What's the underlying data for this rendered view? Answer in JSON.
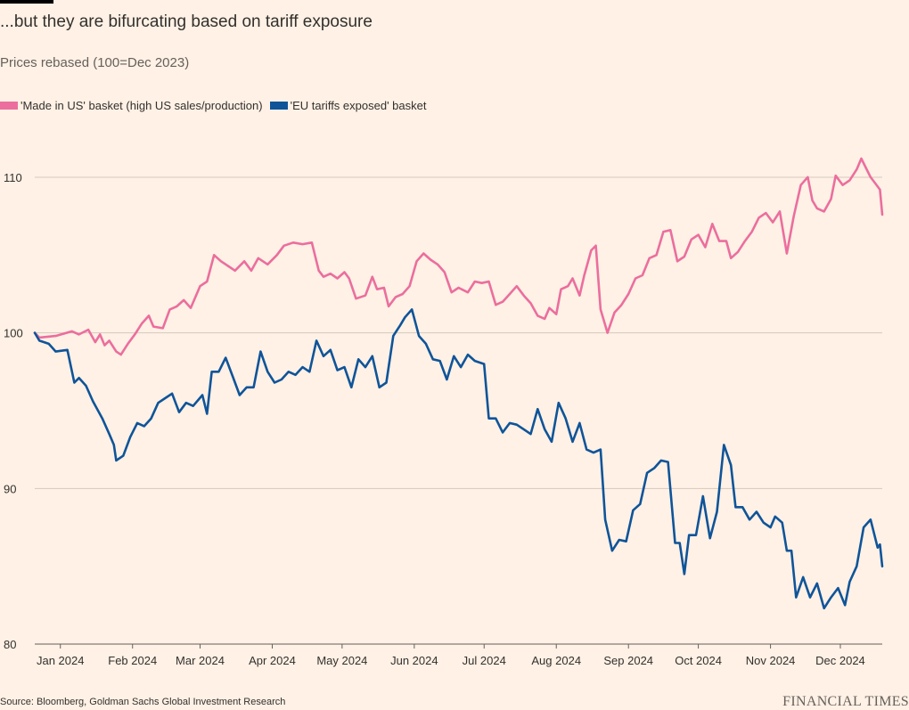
{
  "header": {
    "title": "...but they are bifurcating based on tariff exposure",
    "subtitle": "Prices rebased (100=Dec 2023)"
  },
  "footer": {
    "source": "Source: Bloomberg, Goldman Sachs Global Investment Research",
    "brand": "FINANCIAL TIMES"
  },
  "chart_data": {
    "type": "line",
    "title": "...but they are bifurcating based on tariff exposure",
    "subtitle": "Prices rebased (100=Dec 2023)",
    "xlabel": "",
    "ylabel": "",
    "x_ticks": [
      "Jan 2024",
      "Feb 2024",
      "Mar 2024",
      "Apr 2024",
      "May 2024",
      "Jun 2024",
      "Jul 2024",
      "Aug 2024",
      "Sep 2024",
      "Oct 2024",
      "Nov 2024",
      "Dec 2024"
    ],
    "x_range": [
      "2023-12-21",
      "2024-12-19"
    ],
    "y_ticks": [
      80,
      90,
      100,
      110
    ],
    "ylim": [
      80,
      112
    ],
    "grid": "horizontal",
    "legend_position": "top-left",
    "series": [
      {
        "name": "'Made in US' basket (high US sales/production)",
        "color": "#eb6e9e",
        "points": [
          [
            "2023-12-21",
            100.0
          ],
          [
            "2023-12-23",
            99.7
          ],
          [
            "2023-12-30",
            99.8
          ],
          [
            "2024-01-06",
            100.1
          ],
          [
            "2024-01-09",
            99.9
          ],
          [
            "2024-01-13",
            100.2
          ],
          [
            "2024-01-16",
            99.4
          ],
          [
            "2024-01-18",
            99.9
          ],
          [
            "2024-01-20",
            99.2
          ],
          [
            "2024-01-22",
            99.5
          ],
          [
            "2024-01-25",
            98.8
          ],
          [
            "2024-01-27",
            98.6
          ],
          [
            "2024-01-30",
            99.3
          ],
          [
            "2024-02-02",
            99.9
          ],
          [
            "2024-02-05",
            100.6
          ],
          [
            "2024-02-08",
            101.1
          ],
          [
            "2024-02-10",
            100.4
          ],
          [
            "2024-02-14",
            100.3
          ],
          [
            "2024-02-17",
            101.5
          ],
          [
            "2024-02-20",
            101.7
          ],
          [
            "2024-02-23",
            102.1
          ],
          [
            "2024-02-26",
            101.6
          ],
          [
            "2024-03-01",
            103.0
          ],
          [
            "2024-03-04",
            103.3
          ],
          [
            "2024-03-07",
            105.0
          ],
          [
            "2024-03-10",
            104.6
          ],
          [
            "2024-03-13",
            104.3
          ],
          [
            "2024-03-16",
            104.0
          ],
          [
            "2024-03-20",
            104.6
          ],
          [
            "2024-03-23",
            104.0
          ],
          [
            "2024-03-26",
            104.8
          ],
          [
            "2024-03-30",
            104.4
          ],
          [
            "2024-04-03",
            105.0
          ],
          [
            "2024-04-06",
            105.6
          ],
          [
            "2024-04-10",
            105.8
          ],
          [
            "2024-04-14",
            105.7
          ],
          [
            "2024-04-18",
            105.8
          ],
          [
            "2024-04-21",
            104.0
          ],
          [
            "2024-04-23",
            103.6
          ],
          [
            "2024-04-26",
            103.8
          ],
          [
            "2024-04-29",
            103.5
          ],
          [
            "2024-05-02",
            103.9
          ],
          [
            "2024-05-04",
            103.5
          ],
          [
            "2024-05-07",
            102.2
          ],
          [
            "2024-05-11",
            102.4
          ],
          [
            "2024-05-14",
            103.6
          ],
          [
            "2024-05-16",
            102.8
          ],
          [
            "2024-05-19",
            102.9
          ],
          [
            "2024-05-21",
            101.7
          ],
          [
            "2024-05-24",
            102.3
          ],
          [
            "2024-05-27",
            102.5
          ],
          [
            "2024-05-30",
            103.0
          ],
          [
            "2024-06-02",
            104.6
          ],
          [
            "2024-06-05",
            105.1
          ],
          [
            "2024-06-08",
            104.7
          ],
          [
            "2024-06-11",
            104.4
          ],
          [
            "2024-06-14",
            103.9
          ],
          [
            "2024-06-17",
            102.6
          ],
          [
            "2024-06-20",
            102.9
          ],
          [
            "2024-06-24",
            102.6
          ],
          [
            "2024-06-27",
            103.3
          ],
          [
            "2024-06-30",
            103.2
          ],
          [
            "2024-07-03",
            103.3
          ],
          [
            "2024-07-06",
            101.8
          ],
          [
            "2024-07-09",
            102.0
          ],
          [
            "2024-07-12",
            102.5
          ],
          [
            "2024-07-15",
            103.0
          ],
          [
            "2024-07-18",
            102.4
          ],
          [
            "2024-07-21",
            101.9
          ],
          [
            "2024-07-24",
            101.1
          ],
          [
            "2024-07-27",
            100.9
          ],
          [
            "2024-07-29",
            101.6
          ],
          [
            "2024-08-01",
            101.2
          ],
          [
            "2024-08-03",
            102.8
          ],
          [
            "2024-08-06",
            103.0
          ],
          [
            "2024-08-08",
            103.5
          ],
          [
            "2024-08-11",
            102.4
          ],
          [
            "2024-08-13",
            103.7
          ],
          [
            "2024-08-16",
            105.3
          ],
          [
            "2024-08-18",
            105.6
          ],
          [
            "2024-08-20",
            101.5
          ],
          [
            "2024-08-23",
            100.0
          ],
          [
            "2024-08-26",
            101.3
          ],
          [
            "2024-08-29",
            101.8
          ],
          [
            "2024-09-01",
            102.5
          ],
          [
            "2024-09-04",
            103.5
          ],
          [
            "2024-09-07",
            103.7
          ],
          [
            "2024-09-10",
            104.8
          ],
          [
            "2024-09-13",
            105.0
          ],
          [
            "2024-09-16",
            106.5
          ],
          [
            "2024-09-19",
            106.6
          ],
          [
            "2024-09-22",
            104.6
          ],
          [
            "2024-09-25",
            104.9
          ],
          [
            "2024-09-28",
            106.0
          ],
          [
            "2024-10-01",
            106.3
          ],
          [
            "2024-10-04",
            105.5
          ],
          [
            "2024-10-07",
            107.0
          ],
          [
            "2024-10-10",
            105.9
          ],
          [
            "2024-10-13",
            105.9
          ],
          [
            "2024-10-15",
            104.8
          ],
          [
            "2024-10-18",
            105.2
          ],
          [
            "2024-10-21",
            105.9
          ],
          [
            "2024-10-24",
            106.5
          ],
          [
            "2024-10-27",
            107.4
          ],
          [
            "2024-10-30",
            107.7
          ],
          [
            "2024-11-02",
            107.1
          ],
          [
            "2024-11-05",
            107.8
          ],
          [
            "2024-11-08",
            105.1
          ],
          [
            "2024-11-11",
            107.5
          ],
          [
            "2024-11-14",
            109.5
          ],
          [
            "2024-11-17",
            110.0
          ],
          [
            "2024-11-19",
            108.5
          ],
          [
            "2024-11-21",
            108.0
          ],
          [
            "2024-11-24",
            107.8
          ],
          [
            "2024-11-27",
            108.6
          ],
          [
            "2024-11-29",
            110.1
          ],
          [
            "2024-12-02",
            109.5
          ],
          [
            "2024-12-05",
            109.8
          ],
          [
            "2024-12-08",
            110.5
          ],
          [
            "2024-12-10",
            111.2
          ],
          [
            "2024-12-12",
            110.6
          ],
          [
            "2024-12-14",
            110.0
          ],
          [
            "2024-12-16",
            109.6
          ],
          [
            "2024-12-18",
            109.2
          ],
          [
            "2024-12-19",
            107.6
          ]
        ]
      },
      {
        "name": "'EU tariffs exposed' basket",
        "color": "#0f5499",
        "points": [
          [
            "2023-12-21",
            100.0
          ],
          [
            "2023-12-23",
            99.5
          ],
          [
            "2023-12-27",
            99.3
          ],
          [
            "2023-12-30",
            98.8
          ],
          [
            "2024-01-04",
            98.9
          ],
          [
            "2024-01-07",
            96.8
          ],
          [
            "2024-01-09",
            97.1
          ],
          [
            "2024-01-12",
            96.6
          ],
          [
            "2024-01-15",
            95.6
          ],
          [
            "2024-01-19",
            94.5
          ],
          [
            "2024-01-22",
            93.5
          ],
          [
            "2024-01-24",
            92.8
          ],
          [
            "2024-01-25",
            91.8
          ],
          [
            "2024-01-28",
            92.1
          ],
          [
            "2024-01-31",
            93.3
          ],
          [
            "2024-02-03",
            94.2
          ],
          [
            "2024-02-06",
            94.0
          ],
          [
            "2024-02-09",
            94.5
          ],
          [
            "2024-02-12",
            95.5
          ],
          [
            "2024-02-15",
            95.8
          ],
          [
            "2024-02-18",
            96.1
          ],
          [
            "2024-02-21",
            94.9
          ],
          [
            "2024-02-24",
            95.5
          ],
          [
            "2024-02-27",
            95.3
          ],
          [
            "2024-03-02",
            96.0
          ],
          [
            "2024-03-04",
            94.8
          ],
          [
            "2024-03-06",
            97.5
          ],
          [
            "2024-03-09",
            97.5
          ],
          [
            "2024-03-12",
            98.4
          ],
          [
            "2024-03-15",
            97.2
          ],
          [
            "2024-03-18",
            96.0
          ],
          [
            "2024-03-21",
            96.5
          ],
          [
            "2024-03-24",
            96.5
          ],
          [
            "2024-03-27",
            98.8
          ],
          [
            "2024-03-30",
            97.5
          ],
          [
            "2024-04-02",
            96.8
          ],
          [
            "2024-04-05",
            97.0
          ],
          [
            "2024-04-08",
            97.5
          ],
          [
            "2024-04-11",
            97.3
          ],
          [
            "2024-04-14",
            97.8
          ],
          [
            "2024-04-17",
            97.5
          ],
          [
            "2024-04-20",
            99.5
          ],
          [
            "2024-04-23",
            98.5
          ],
          [
            "2024-04-26",
            98.9
          ],
          [
            "2024-04-29",
            97.6
          ],
          [
            "2024-05-02",
            97.8
          ],
          [
            "2024-05-05",
            96.5
          ],
          [
            "2024-05-08",
            98.3
          ],
          [
            "2024-05-11",
            97.8
          ],
          [
            "2024-05-14",
            98.5
          ],
          [
            "2024-05-17",
            96.5
          ],
          [
            "2024-05-20",
            96.8
          ],
          [
            "2024-05-23",
            99.8
          ],
          [
            "2024-05-26",
            100.5
          ],
          [
            "2024-05-28",
            101.0
          ],
          [
            "2024-05-31",
            101.5
          ],
          [
            "2024-06-03",
            99.8
          ],
          [
            "2024-06-06",
            99.3
          ],
          [
            "2024-06-09",
            98.3
          ],
          [
            "2024-06-12",
            98.2
          ],
          [
            "2024-06-15",
            97.0
          ],
          [
            "2024-06-18",
            98.5
          ],
          [
            "2024-06-21",
            97.8
          ],
          [
            "2024-06-24",
            98.6
          ],
          [
            "2024-06-27",
            98.2
          ],
          [
            "2024-07-01",
            98.0
          ],
          [
            "2024-07-03",
            94.5
          ],
          [
            "2024-07-06",
            94.5
          ],
          [
            "2024-07-09",
            93.6
          ],
          [
            "2024-07-12",
            94.2
          ],
          [
            "2024-07-15",
            94.1
          ],
          [
            "2024-07-18",
            93.8
          ],
          [
            "2024-07-21",
            93.5
          ],
          [
            "2024-07-24",
            95.1
          ],
          [
            "2024-07-27",
            93.8
          ],
          [
            "2024-07-30",
            93.0
          ],
          [
            "2024-08-02",
            95.5
          ],
          [
            "2024-08-05",
            94.5
          ],
          [
            "2024-08-08",
            93.0
          ],
          [
            "2024-08-11",
            94.2
          ],
          [
            "2024-08-14",
            92.5
          ],
          [
            "2024-08-17",
            92.3
          ],
          [
            "2024-08-20",
            92.5
          ],
          [
            "2024-08-22",
            88.0
          ],
          [
            "2024-08-25",
            86.0
          ],
          [
            "2024-08-28",
            86.7
          ],
          [
            "2024-08-31",
            86.6
          ],
          [
            "2024-09-03",
            88.6
          ],
          [
            "2024-09-06",
            89.0
          ],
          [
            "2024-09-09",
            91.0
          ],
          [
            "2024-09-12",
            91.3
          ],
          [
            "2024-09-15",
            91.8
          ],
          [
            "2024-09-18",
            91.7
          ],
          [
            "2024-09-21",
            86.5
          ],
          [
            "2024-09-23",
            86.5
          ],
          [
            "2024-09-25",
            84.5
          ],
          [
            "2024-09-27",
            87.0
          ],
          [
            "2024-09-30",
            87.0
          ],
          [
            "2024-10-03",
            89.5
          ],
          [
            "2024-10-06",
            86.8
          ],
          [
            "2024-10-09",
            88.5
          ],
          [
            "2024-10-12",
            92.8
          ],
          [
            "2024-10-15",
            91.5
          ],
          [
            "2024-10-17",
            88.8
          ],
          [
            "2024-10-20",
            88.8
          ],
          [
            "2024-10-23",
            88.0
          ],
          [
            "2024-10-26",
            88.5
          ],
          [
            "2024-10-29",
            87.8
          ],
          [
            "2024-11-01",
            87.5
          ],
          [
            "2024-11-03",
            88.2
          ],
          [
            "2024-11-06",
            87.8
          ],
          [
            "2024-11-08",
            86.0
          ],
          [
            "2024-11-10",
            86.0
          ],
          [
            "2024-11-12",
            83.0
          ],
          [
            "2024-11-15",
            84.3
          ],
          [
            "2024-11-18",
            83.0
          ],
          [
            "2024-11-21",
            83.9
          ],
          [
            "2024-11-24",
            82.3
          ],
          [
            "2024-11-27",
            83.0
          ],
          [
            "2024-11-30",
            83.6
          ],
          [
            "2024-12-03",
            82.5
          ],
          [
            "2024-12-05",
            84.0
          ],
          [
            "2024-12-08",
            85.0
          ],
          [
            "2024-12-11",
            87.5
          ],
          [
            "2024-12-14",
            88.0
          ],
          [
            "2024-12-17",
            86.2
          ],
          [
            "2024-12-18",
            86.4
          ],
          [
            "2024-12-19",
            85.0
          ]
        ]
      }
    ]
  }
}
